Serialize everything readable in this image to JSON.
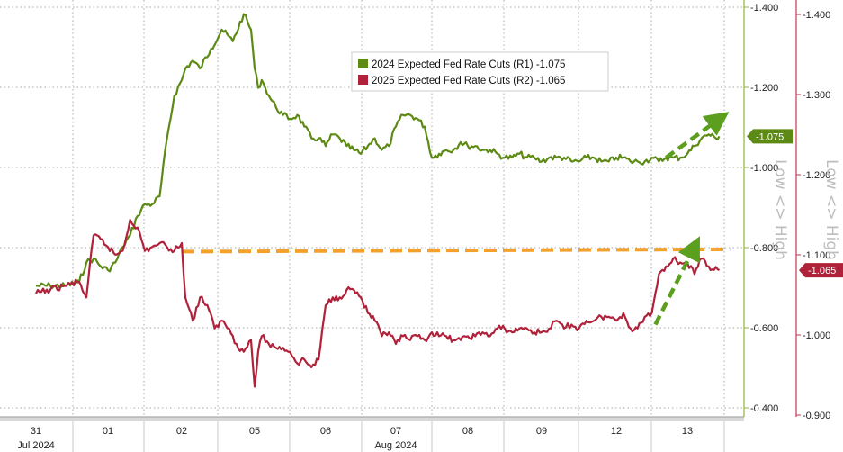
{
  "chart_data": {
    "type": "line",
    "x_labels": [
      {
        "day": "31",
        "month": "Jul 2024"
      },
      {
        "day": "01",
        "month": ""
      },
      {
        "day": "02",
        "month": ""
      },
      {
        "day": "05",
        "month": ""
      },
      {
        "day": "06",
        "month": ""
      },
      {
        "day": "07",
        "month": "Aug 2024"
      },
      {
        "day": "08",
        "month": ""
      },
      {
        "day": "09",
        "month": ""
      },
      {
        "day": "12",
        "month": ""
      },
      {
        "day": "13",
        "month": ""
      }
    ],
    "axes": {
      "r1": {
        "ticks": [
          "-1.400",
          "-1.200",
          "-1.000",
          "-0.800",
          "-0.600",
          "-0.400"
        ],
        "ylim": [
          -0.38,
          -1.41
        ],
        "title": "Low <> High"
      },
      "r2": {
        "ticks": [
          "-1.400",
          "-1.300",
          "-1.200",
          "-1.100",
          "-1.000",
          "-0.900"
        ],
        "ylim": [
          -0.89,
          -1.405
        ],
        "title": "Low <> High"
      }
    },
    "grid": true,
    "legend_position": "top-center",
    "series": [
      {
        "name": "2024 Expected Fed Rate Cuts (R1)",
        "axis": "r1",
        "color": "#5c8a14",
        "last_value_label": "-1.075",
        "x": [
          0,
          0.2,
          0.4,
          0.6,
          0.7,
          0.8,
          0.9,
          1.0,
          1.1,
          1.2,
          1.3,
          1.4,
          1.5,
          1.6,
          1.7,
          1.8,
          1.9,
          2.0,
          2.05,
          2.15,
          2.25,
          2.4,
          2.55,
          2.7,
          2.85,
          2.95,
          3.0,
          3.05,
          3.1,
          3.15,
          3.2,
          3.3,
          3.4,
          3.5,
          3.6,
          3.7,
          3.8,
          3.9,
          4.0,
          4.1,
          4.2,
          4.3,
          4.4,
          4.5,
          4.6,
          4.7,
          4.8,
          4.9,
          5.0,
          5.1,
          5.2,
          5.3,
          5.4,
          5.5,
          5.6,
          5.7,
          5.8,
          5.9,
          6.0,
          6.1,
          6.2,
          6.3,
          6.4,
          6.5,
          6.6,
          6.7,
          6.8,
          6.9,
          7.0,
          7.1,
          7.2,
          7.3,
          7.4,
          7.5,
          7.6,
          7.7,
          7.8,
          7.9,
          8.0,
          8.1,
          8.2,
          8.3,
          8.4,
          8.5,
          8.6,
          8.7,
          8.8,
          8.9,
          9.0,
          9.1,
          9.2,
          9.3,
          9.4,
          9.45
        ],
        "values": [
          -0.69,
          -0.69,
          -0.69,
          -0.7,
          -0.75,
          -0.76,
          -0.74,
          -0.73,
          -0.75,
          -0.79,
          -0.82,
          -0.87,
          -0.9,
          -0.9,
          -0.92,
          -1.07,
          -1.18,
          -1.22,
          -1.25,
          -1.27,
          -1.25,
          -1.3,
          -1.35,
          -1.32,
          -1.39,
          -1.35,
          -1.25,
          -1.2,
          -1.22,
          -1.2,
          -1.18,
          -1.15,
          -1.13,
          -1.12,
          -1.13,
          -1.1,
          -1.07,
          -1.07,
          -1.05,
          -1.08,
          -1.07,
          -1.05,
          -1.04,
          -1.03,
          -1.05,
          -1.07,
          -1.04,
          -1.05,
          -1.1,
          -1.13,
          -1.13,
          -1.12,
          -1.1,
          -1.02,
          -1.03,
          -1.04,
          -1.04,
          -1.06,
          -1.05,
          -1.05,
          -1.04,
          -1.04,
          -1.03,
          -1.02,
          -1.02,
          -1.03,
          -1.02,
          -1.02,
          -1.01,
          -1.02,
          -1.02,
          -1.02,
          -1.01,
          -1.01,
          -1.02,
          -1.02,
          -1.01,
          -1.01,
          -1.02,
          -1.02,
          -1.01,
          -1.01,
          -1.01,
          -1.02,
          -1.01,
          -1.02,
          -1.02,
          -1.02,
          -1.03,
          -1.05,
          -1.07,
          -1.08,
          -1.07,
          -1.075
        ]
      },
      {
        "name": "2025 Expected Fed Rate Cuts (R2)",
        "axis": "r2",
        "color": "#b0213a",
        "last_value_label": "-1.065",
        "x": [
          0,
          0.2,
          0.4,
          0.6,
          0.7,
          0.8,
          0.9,
          1.0,
          1.1,
          1.2,
          1.3,
          1.4,
          1.5,
          1.6,
          1.7,
          1.8,
          1.9,
          2.0,
          2.05,
          2.15,
          2.25,
          2.35,
          2.45,
          2.55,
          2.65,
          2.75,
          2.85,
          2.95,
          3.0,
          3.05,
          3.1,
          3.2,
          3.3,
          3.4,
          3.5,
          3.6,
          3.7,
          3.8,
          3.9,
          4.0,
          4.1,
          4.2,
          4.3,
          4.4,
          4.5,
          4.6,
          4.7,
          4.8,
          4.9,
          5.0,
          5.1,
          5.2,
          5.3,
          5.4,
          5.5,
          5.6,
          5.7,
          5.8,
          5.9,
          6.0,
          6.1,
          6.2,
          6.3,
          6.4,
          6.5,
          6.6,
          6.7,
          6.8,
          6.9,
          7.0,
          7.1,
          7.2,
          7.3,
          7.4,
          7.5,
          7.6,
          7.7,
          7.8,
          7.9,
          8.0,
          8.1,
          8.2,
          8.3,
          8.4,
          8.5,
          8.6,
          8.7,
          8.8,
          8.9,
          9.0,
          9.1,
          9.2,
          9.3,
          9.45
        ],
        "values": [
          -1.035,
          -1.04,
          -1.045,
          -1.05,
          -1.03,
          -1.11,
          -1.105,
          -1.095,
          -1.085,
          -1.09,
          -1.13,
          -1.12,
          -1.09,
          -1.095,
          -1.1,
          -1.095,
          -1.09,
          -1.1,
          -1.03,
          -1.0,
          -1.03,
          -1.02,
          -0.99,
          -1.0,
          -0.99,
          -0.97,
          -0.96,
          -0.975,
          -0.915,
          -0.96,
          -0.98,
          -0.97,
          -0.965,
          -0.965,
          -0.96,
          -0.945,
          -0.95,
          -0.94,
          -0.95,
          -1.02,
          -1.03,
          -1.03,
          -1.04,
          -1.04,
          -1.03,
          -1.01,
          -1.0,
          -0.98,
          -0.985,
          -0.97,
          -0.98,
          -0.975,
          -0.98,
          -0.975,
          -0.985,
          -0.98,
          -0.98,
          -0.975,
          -0.975,
          -0.98,
          -0.98,
          -0.985,
          -0.98,
          -0.99,
          -0.99,
          -0.985,
          -0.99,
          -0.99,
          -0.985,
          -0.985,
          -0.99,
          -1.0,
          -0.99,
          -0.995,
          -0.99,
          -1.0,
          -1.0,
          -1.005,
          -1.005,
          -1.0,
          -1.01,
          -0.99,
          -0.99,
          -1.005,
          -1.01,
          -1.06,
          -1.07,
          -1.08,
          -1.075,
          -1.075,
          -1.06,
          -1.08,
          -1.07,
          -1.065
        ]
      }
    ],
    "annotations": [
      {
        "type": "dashed-line",
        "color": "#f4a12c",
        "axis": "r2",
        "x": [
          2.0,
          9.6
        ],
        "y": [
          -1.089,
          -1.092
        ]
      },
      {
        "type": "dashed-arrow",
        "color": "#5c9e1e",
        "axis": "r1",
        "x": [
          8.7,
          9.45
        ],
        "y": [
          -1.02,
          -1.12
        ]
      },
      {
        "type": "dashed-arrow",
        "color": "#5c9e1e",
        "axis": "r2",
        "x": [
          8.55,
          9.1
        ],
        "y": [
          -0.995,
          -1.095
        ]
      }
    ]
  }
}
